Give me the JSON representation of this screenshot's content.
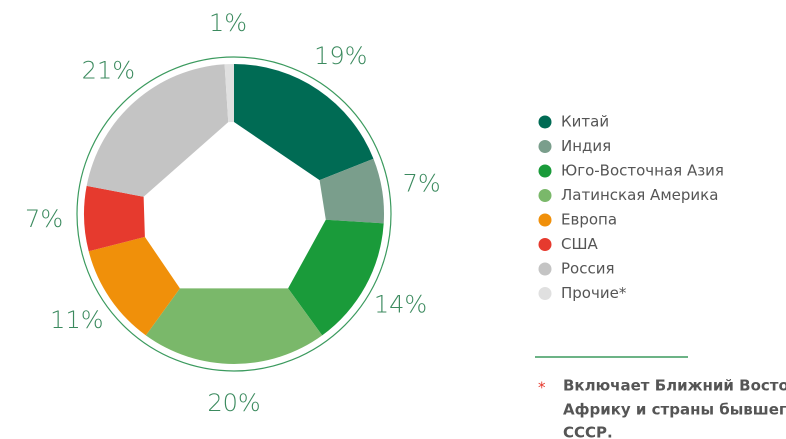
{
  "chart_data": {
    "type": "pie",
    "categories": [
      "Китай",
      "Индия",
      "Юго-Восточная Азия",
      "Латинская Америка",
      "Европа",
      "США",
      "Россия",
      "Прочие*"
    ],
    "values": [
      19,
      7,
      14,
      20,
      11,
      7,
      21,
      1
    ],
    "value_labels": [
      "19%",
      "7%",
      "14%",
      "20%",
      "11%",
      "7%",
      "21%",
      "1%"
    ],
    "colors": [
      "#006b54",
      "#7a9e8c",
      "#1a9b3a",
      "#7ab86a",
      "#f0900a",
      "#e63a2e",
      "#c4c4c4",
      "#e0e0e0"
    ],
    "legend": "right"
  },
  "footnote": {
    "marker": "*",
    "lines": [
      "Включает Ближний Восток,",
      "Африку и страны бывшего",
      "СССР."
    ]
  }
}
